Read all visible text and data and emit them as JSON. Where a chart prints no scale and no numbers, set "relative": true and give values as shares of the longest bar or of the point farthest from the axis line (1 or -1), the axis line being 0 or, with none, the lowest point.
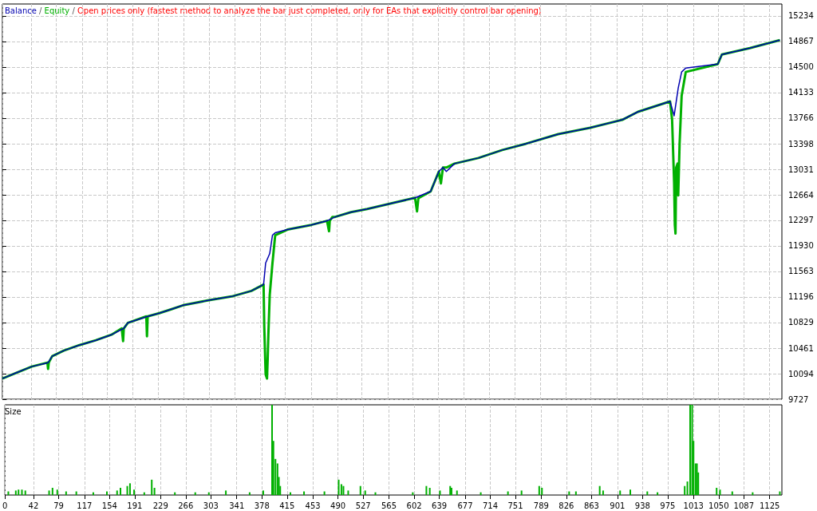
{
  "chart_data": [
    {
      "type": "line",
      "annotations": [
        "/",
        "/"
      ],
      "subtitle": "Open prices only (fastest method to analyze the bar just completed, only for EAs that explicitly control bar opening)",
      "legend": "top left",
      "grid": true,
      "tick_labels": "y",
      "xlim": [
        0,
        1143
      ],
      "ylim": [
        9727,
        15406
      ],
      "xticks": [
        0,
        42,
        79,
        117,
        154,
        191,
        229,
        266,
        303,
        341,
        378,
        415,
        453,
        490,
        527,
        565,
        602,
        639,
        677,
        714,
        751,
        789,
        826,
        863,
        901,
        938,
        975,
        1013,
        1050,
        1087,
        1125
      ],
      "yticks": [
        9727,
        10094,
        10461,
        10829,
        11196,
        11563,
        11930,
        12297,
        12664,
        13031,
        13398,
        13766,
        14133,
        14500,
        14867,
        15234
      ],
      "series": [
        {
          "name": "Equity",
          "color": "#00b000",
          "x": [
            0,
            20,
            43,
            66,
            67,
            68,
            73,
            90,
            113,
            137,
            160,
            175,
            177,
            178,
            184,
            211,
            212,
            213,
            230,
            248,
            265,
            301,
            336,
            365,
            383,
            384,
            386,
            388,
            389,
            390,
            392,
            396,
            400,
            418,
            453,
            476,
            479,
            480,
            484,
            488,
            511,
            535,
            570,
            605,
            608,
            610,
            611,
            628,
            640,
            643,
            646,
            651,
            663,
            698,
            733,
            768,
            815,
            862,
            909,
            932,
            979,
            982,
            985,
            986,
            987,
            988,
            990,
            991,
            993,
            996,
            1002,
            1049,
            1055,
            1096,
            1140
          ],
          "values": [
            10024,
            10105,
            10196,
            10253,
            10162,
            10253,
            10345,
            10425,
            10505,
            10574,
            10654,
            10745,
            10562,
            10745,
            10825,
            10917,
            10631,
            10917,
            10963,
            11020,
            11077,
            11146,
            11203,
            11283,
            11374,
            10768,
            10082,
            10024,
            10310,
            10654,
            11226,
            11683,
            12084,
            12164,
            12232,
            12290,
            12141,
            12290,
            12347,
            12347,
            12415,
            12461,
            12541,
            12621,
            12427,
            12621,
            12621,
            12713,
            13000,
            12827,
            13056,
            13056,
            13113,
            13193,
            13308,
            13399,
            13536,
            13628,
            13742,
            13857,
            14006,
            13742,
            12827,
            12232,
            12107,
            13056,
            13113,
            12656,
            13399,
            14086,
            14429,
            14543,
            14680,
            14772,
            14886
          ]
        },
        {
          "name": "Balance",
          "color": "#0000b0",
          "x": [
            0,
            20,
            43,
            67,
            73,
            90,
            113,
            137,
            160,
            178,
            184,
            213,
            230,
            248,
            265,
            301,
            336,
            365,
            383,
            386,
            392,
            396,
            400,
            418,
            453,
            476,
            488,
            511,
            535,
            570,
            605,
            628,
            640,
            646,
            651,
            663,
            698,
            733,
            768,
            815,
            862,
            909,
            932,
            979,
            985,
            991,
            996,
            1002,
            1049,
            1055,
            1096,
            1140
          ],
          "values": [
            10024,
            10105,
            10196,
            10253,
            10345,
            10425,
            10505,
            10574,
            10654,
            10745,
            10825,
            10917,
            10963,
            11020,
            11077,
            11146,
            11203,
            11283,
            11374,
            11683,
            11820,
            12084,
            12118,
            12164,
            12232,
            12290,
            12347,
            12415,
            12461,
            12541,
            12621,
            12713,
            13000,
            13056,
            13000,
            13113,
            13193,
            13308,
            13399,
            13536,
            13628,
            13742,
            13857,
            14006,
            13800,
            14200,
            14429,
            14486,
            14543,
            14680,
            14772,
            14886
          ]
        }
      ]
    },
    {
      "type": "bar",
      "title": "Size",
      "relative": true,
      "grid": true,
      "tick_labels": "x",
      "xlim": [
        0,
        1143
      ],
      "xticks": [
        0,
        42,
        79,
        117,
        154,
        191,
        229,
        266,
        303,
        341,
        378,
        415,
        453,
        490,
        527,
        565,
        602,
        639,
        677,
        714,
        751,
        789,
        826,
        863,
        901,
        938,
        975,
        1013,
        1050,
        1087,
        1125
      ],
      "series": [
        {
          "color": "#00b000",
          "x": [
            5,
            16,
            20,
            25,
            30,
            65,
            70,
            77,
            90,
            105,
            130,
            150,
            165,
            170,
            180,
            184,
            190,
            205,
            216,
            220,
            250,
            280,
            300,
            325,
            360,
            380,
            393,
            395,
            398,
            401,
            403,
            405,
            420,
            440,
            470,
            491,
            495,
            498,
            505,
            523,
            530,
            545,
            600,
            620,
            625,
            640,
            655,
            657,
            665,
            700,
            740,
            760,
            786,
            790,
            830,
            840,
            875,
            880,
            905,
            920,
            945,
            960,
            1000,
            1004,
            1008,
            1011,
            1013,
            1016,
            1018,
            1020,
            1047,
            1052,
            1070,
            1100,
            1140
          ],
          "values": [
            0.04,
            0.05,
            0.06,
            0.06,
            0.05,
            0.05,
            0.08,
            0.06,
            0.04,
            0.04,
            0.03,
            0.04,
            0.05,
            0.08,
            0.1,
            0.13,
            0.06,
            0.03,
            0.17,
            0.08,
            0.03,
            0.03,
            0.03,
            0.05,
            0.03,
            0.05,
            1.0,
            0.6,
            0.4,
            0.35,
            0.2,
            0.1,
            0.03,
            0.04,
            0.04,
            0.17,
            0.12,
            0.1,
            0.05,
            0.1,
            0.05,
            0.03,
            0.03,
            0.1,
            0.08,
            0.05,
            0.1,
            0.08,
            0.05,
            0.03,
            0.04,
            0.05,
            0.1,
            0.08,
            0.04,
            0.04,
            0.1,
            0.05,
            0.05,
            0.06,
            0.04,
            0.03,
            0.1,
            0.15,
            1.0,
            1.0,
            0.6,
            0.35,
            0.35,
            0.25,
            0.08,
            0.06,
            0.04,
            0.03,
            0.04
          ]
        }
      ]
    }
  ]
}
